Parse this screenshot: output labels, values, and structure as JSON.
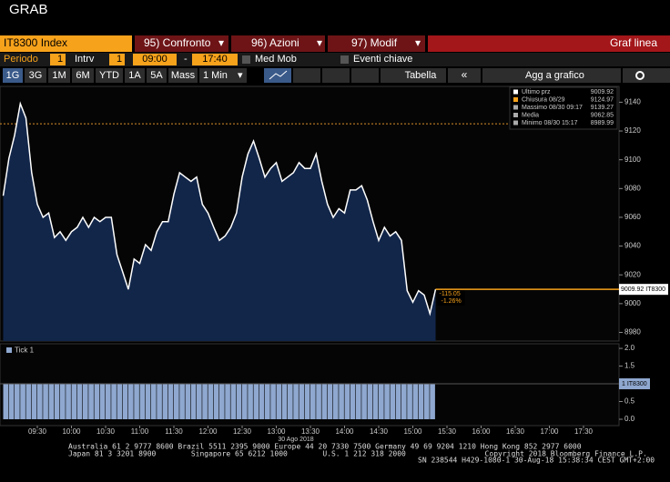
{
  "header": {
    "title": "GRAB"
  },
  "toolbar": {
    "ticker": "IT8300 Index",
    "menus": [
      "95) Confronto",
      "96) Azioni",
      "97) Modif"
    ],
    "view": "Graf linea",
    "period_label": "Periodo",
    "period": "1",
    "interval_label": "Intrv",
    "interval": "1",
    "start": "09:00",
    "dash": "-",
    "end": "17:40",
    "options": [
      "Med Mob",
      "Eventi chiave"
    ],
    "ranges": [
      "1G",
      "3G",
      "1M",
      "6M",
      "YTD",
      "1A",
      "5A",
      "Mass",
      "1 Min"
    ],
    "table": "Tabella",
    "back": "«",
    "add": "Agg a grafico"
  },
  "chart_data": [
    {
      "type": "line",
      "color": "#ffffff",
      "x": [
        "09:00",
        "09:05",
        "09:10",
        "09:15",
        "09:20",
        "09:25",
        "09:30",
        "09:35",
        "09:40",
        "09:45",
        "09:50",
        "09:55",
        "10:00",
        "10:05",
        "10:10",
        "10:15",
        "10:20",
        "10:25",
        "10:30",
        "10:35",
        "10:40",
        "10:45",
        "10:50",
        "10:55",
        "11:00",
        "11:05",
        "11:10",
        "11:15",
        "11:20",
        "11:25",
        "11:30",
        "11:35",
        "11:40",
        "11:45",
        "11:50",
        "11:55",
        "12:00",
        "12:05",
        "12:10",
        "12:15",
        "12:20",
        "12:25",
        "12:30",
        "12:35",
        "12:40",
        "12:45",
        "12:50",
        "12:55",
        "13:00",
        "13:05",
        "13:10",
        "13:15",
        "13:20",
        "13:25",
        "13:30",
        "13:35",
        "13:40",
        "13:45",
        "13:50",
        "13:55",
        "14:00",
        "14:05",
        "14:10",
        "14:15",
        "14:20",
        "14:25",
        "14:30",
        "14:35",
        "14:40",
        "14:45",
        "14:50",
        "14:55",
        "15:00",
        "15:05",
        "15:10",
        "15:15",
        "15:20"
      ],
      "values": [
        9075,
        9101,
        9117,
        9139,
        9129,
        9091,
        9069,
        9060,
        9063,
        9046,
        9050,
        9044,
        9050,
        9053,
        9060,
        9053,
        9060,
        9057,
        9060,
        9060,
        9034,
        9022,
        9010,
        9031,
        9028,
        9041,
        9037,
        9050,
        9057,
        9057,
        9076,
        9091,
        9088,
        9085,
        9088,
        9069,
        9063,
        9053,
        9044,
        9047,
        9053,
        9063,
        9088,
        9104,
        9113,
        9101,
        9088,
        9094,
        9098,
        9085,
        9088,
        9091,
        9098,
        9094,
        9094,
        9104,
        9085,
        9069,
        9060,
        9066,
        9063,
        9079,
        9079,
        9082,
        9072,
        9057,
        9044,
        9053,
        9047,
        9050,
        9044,
        9009,
        9001,
        9009,
        9006,
        8993,
        9010
      ],
      "xlim": [
        "09:00",
        "18:00"
      ],
      "xticks": [
        "09:30",
        "10:00",
        "10:30",
        "11:00",
        "11:30",
        "12:00",
        "12:30",
        "13:00",
        "13:30",
        "14:00",
        "14:30",
        "15:00",
        "15:30",
        "16:00",
        "16:30",
        "17:00",
        "17:30"
      ],
      "x_date": "30 Ago 2018",
      "ylim": [
        8974,
        9151
      ],
      "yticks": [
        8980,
        9000,
        9020,
        9040,
        9060,
        9080,
        9100,
        9120,
        9140
      ],
      "legend": [
        {
          "name": "Ultimo prz",
          "value": "9009.92"
        },
        {
          "name": "Chiusura 08/29",
          "value": "9124.97"
        },
        {
          "name": "Massimo 08/30 09:17",
          "value": "9139.27"
        },
        {
          "name": "Media",
          "value": "9062.85"
        },
        {
          "name": "Minimo 08/30 15:17",
          "value": "8989.99"
        }
      ],
      "prev_close": 9124.97,
      "last_value": 9009.92,
      "last_label": "9009.92 IT8300",
      "change_labels": [
        "-115.05",
        "-1.26%"
      ]
    },
    {
      "type": "bar",
      "color": "#8fa8d0",
      "legend": "Tick 1",
      "last_label": "1 IT8300",
      "x": [
        "09:00",
        "09:05",
        "09:10",
        "09:15",
        "09:20",
        "09:25",
        "09:30",
        "09:35",
        "09:40",
        "09:45",
        "09:50",
        "09:55",
        "10:00",
        "10:05",
        "10:10",
        "10:15",
        "10:20",
        "10:25",
        "10:30",
        "10:35",
        "10:40",
        "10:45",
        "10:50",
        "10:55",
        "11:00",
        "11:05",
        "11:10",
        "11:15",
        "11:20",
        "11:25",
        "11:30",
        "11:35",
        "11:40",
        "11:45",
        "11:50",
        "11:55",
        "12:00",
        "12:05",
        "12:10",
        "12:15",
        "12:20",
        "12:25",
        "12:30",
        "12:35",
        "12:40",
        "12:45",
        "12:50",
        "12:55",
        "13:00",
        "13:05",
        "13:10",
        "13:15",
        "13:20",
        "13:25",
        "13:30",
        "13:35",
        "13:40",
        "13:45",
        "13:50",
        "13:55",
        "14:00",
        "14:05",
        "14:10",
        "14:15",
        "14:20",
        "14:25",
        "14:30",
        "14:35",
        "14:40",
        "14:45",
        "14:50",
        "14:55",
        "15:00",
        "15:05",
        "15:10",
        "15:15"
      ],
      "values": [
        1,
        1,
        1,
        1,
        1,
        1,
        1,
        1,
        1,
        1,
        1,
        1,
        1,
        1,
        1,
        1,
        1,
        1,
        1,
        1,
        1,
        1,
        1,
        1,
        1,
        1,
        1,
        1,
        1,
        1,
        1,
        1,
        1,
        1,
        1,
        1,
        1,
        1,
        1,
        1,
        1,
        1,
        1,
        1,
        1,
        1,
        1,
        1,
        1,
        1,
        1,
        1,
        1,
        1,
        1,
        1,
        1,
        1,
        1,
        1,
        1,
        1,
        1,
        1,
        1,
        1,
        1,
        1,
        1,
        1,
        1,
        1,
        1,
        1,
        1,
        1
      ],
      "ylim": [
        -0.18,
        2.13
      ],
      "yticks": [
        {
          "value": 0,
          "label": "0.0"
        },
        {
          "value": 0.5,
          "label": "0.5"
        },
        {
          "value": 1,
          "label": "1.0"
        },
        {
          "value": 1.5,
          "label": "1.5"
        },
        {
          "value": 2,
          "label": "2.0"
        }
      ]
    }
  ],
  "footer": {
    "lines": [
      "Australia 61 2 9777 8600 Brazil 5511 2395 9000 Europe 44 20 7330 7500 Germany 49 69 9204 1210 Hong Kong 852 2977 6000",
      "Japan 81 3 3201 8900        Singapore 65 6212 1000        U.S. 1 212 318 2000                  Copyright 2018 Bloomberg Finance L.P.",
      "SN 238544 H429-1080-1 30-Aug-18 15:38:34 CEST GMT+2:00"
    ]
  }
}
